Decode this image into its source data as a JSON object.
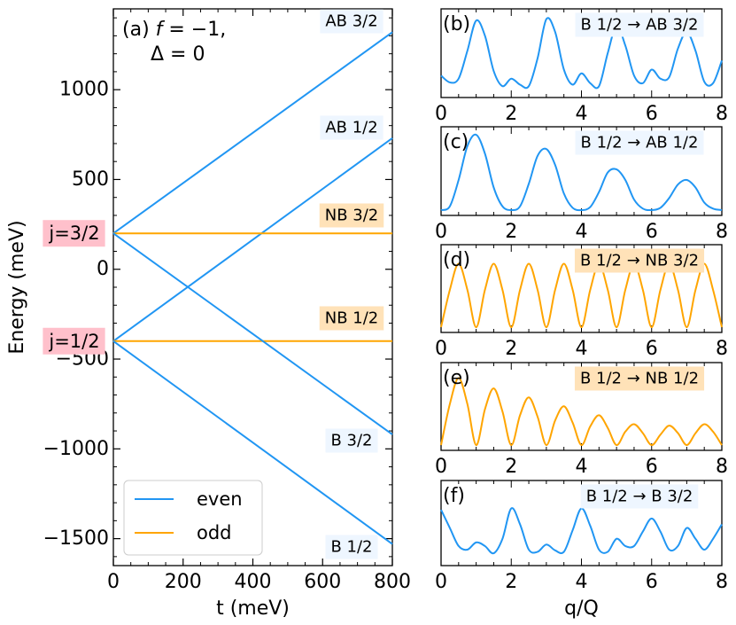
{
  "colors": {
    "even": "#2196F3",
    "odd": "#FFA500",
    "blue_box": "#EEF6FF",
    "orange_box": "#FFE2B8",
    "pink_box": "#FFC0CB"
  },
  "chart_data": [
    {
      "id": "a",
      "type": "line",
      "title": "(a) f = −1, Δ = 0",
      "title_parts": {
        "prefix": "(a) ",
        "f_symbol": "f",
        "f_value": "= −1,",
        "delta_line": "Δ = 0"
      },
      "xlabel": "t (meV)",
      "ylabel": "Energy (meV)",
      "xlim": [
        0,
        800
      ],
      "ylim": [
        -1650,
        1450
      ],
      "xticks": [
        0,
        200,
        400,
        600,
        800
      ],
      "yticks": [
        -1500,
        -1000,
        -500,
        0,
        500,
        1000
      ],
      "legend": {
        "position": "bottom-left",
        "entries": [
          {
            "label": "even",
            "parity": "even"
          },
          {
            "label": "odd",
            "parity": "odd"
          }
        ]
      },
      "series": [
        {
          "name": "AB 3/2",
          "parity": "even",
          "x": [
            0,
            800
          ],
          "y": [
            200,
            1320
          ]
        },
        {
          "name": "AB 1/2",
          "parity": "even",
          "x": [
            0,
            800
          ],
          "y": [
            -400,
            730
          ]
        },
        {
          "name": "NB 3/2",
          "parity": "odd",
          "x": [
            0,
            800
          ],
          "y": [
            200,
            200
          ]
        },
        {
          "name": "NB 1/2",
          "parity": "odd",
          "x": [
            0,
            800
          ],
          "y": [
            -400,
            -400
          ]
        },
        {
          "name": "B 3/2",
          "parity": "even",
          "x": [
            0,
            800
          ],
          "y": [
            200,
            -920
          ]
        },
        {
          "name": "B 1/2",
          "parity": "even",
          "x": [
            0,
            800
          ],
          "y": [
            -400,
            -1530
          ]
        }
      ],
      "side_labels": [
        {
          "text": "j=3/2",
          "y": 200
        },
        {
          "text": "j=1/2",
          "y": -400
        }
      ]
    },
    {
      "id": "b",
      "type": "line",
      "panel_label": "(b)",
      "title": "B 1/2 → AB 3/2",
      "parity": "even",
      "xlim": [
        0,
        8
      ],
      "xticks": [
        0,
        2,
        4,
        6,
        8
      ],
      "x": [
        0,
        0.25,
        0.5,
        0.75,
        1,
        1.25,
        1.5,
        1.75,
        2,
        2.25,
        2.5,
        2.75,
        3,
        3.25,
        3.5,
        3.75,
        4,
        4.25,
        4.5,
        4.75,
        5,
        5.25,
        5.5,
        5.75,
        6,
        6.25,
        6.5,
        6.75,
        7,
        7.25,
        7.5,
        7.75,
        8
      ],
      "y": [
        0.22,
        0.13,
        0.18,
        0.55,
        0.95,
        0.75,
        0.28,
        0.08,
        0.18,
        0.1,
        0.08,
        0.45,
        0.97,
        0.8,
        0.3,
        0.1,
        0.25,
        0.12,
        0.08,
        0.52,
        0.88,
        0.62,
        0.22,
        0.12,
        0.3,
        0.18,
        0.2,
        0.58,
        0.8,
        0.55,
        0.14,
        0.12,
        0.42
      ]
    },
    {
      "id": "c",
      "type": "line",
      "panel_label": "(c)",
      "title": "B 1/2 → AB 1/2",
      "parity": "even",
      "xlim": [
        0,
        8
      ],
      "xticks": [
        0,
        2,
        4,
        6,
        8
      ],
      "x": [
        0,
        0.25,
        0.5,
        0.75,
        1,
        1.25,
        1.5,
        1.75,
        2,
        2.25,
        2.5,
        2.75,
        3,
        3.25,
        3.5,
        3.75,
        4,
        4.25,
        4.5,
        4.75,
        5,
        5.25,
        5.5,
        5.75,
        6,
        6.25,
        6.5,
        6.75,
        7,
        7.25,
        7.5,
        7.75,
        8
      ],
      "y": [
        0.0,
        0.05,
        0.4,
        0.85,
        1.0,
        0.75,
        0.3,
        0.05,
        0.0,
        0.05,
        0.35,
        0.72,
        0.81,
        0.6,
        0.22,
        0.03,
        0.0,
        0.04,
        0.24,
        0.5,
        0.54,
        0.4,
        0.14,
        0.02,
        0.0,
        0.03,
        0.16,
        0.34,
        0.4,
        0.3,
        0.1,
        0.02,
        0.0
      ]
    },
    {
      "id": "d",
      "type": "line",
      "panel_label": "(d)",
      "title": "B 1/2 → NB 3/2",
      "parity": "odd",
      "xlim": [
        0,
        8
      ],
      "xticks": [
        0,
        2,
        4,
        6,
        8
      ],
      "x": [
        0,
        0.25,
        0.5,
        0.75,
        1,
        1.25,
        1.5,
        1.75,
        2,
        2.25,
        2.5,
        2.75,
        3,
        3.25,
        3.5,
        3.75,
        4,
        4.25,
        4.5,
        4.75,
        5,
        5.25,
        5.5,
        5.75,
        6,
        6.25,
        6.5,
        6.75,
        7,
        7.25,
        7.5,
        7.75,
        8
      ],
      "y": [
        0.0,
        0.5,
        0.85,
        0.5,
        0.0,
        0.5,
        0.85,
        0.5,
        0.0,
        0.5,
        0.85,
        0.5,
        0.0,
        0.5,
        0.85,
        0.5,
        0.0,
        0.5,
        0.85,
        0.5,
        0.0,
        0.5,
        0.85,
        0.5,
        0.0,
        0.5,
        0.85,
        0.5,
        0.0,
        0.5,
        0.85,
        0.5,
        0.0
      ]
    },
    {
      "id": "e",
      "type": "line",
      "panel_label": "(e)",
      "title": "B 1/2 → NB 1/2",
      "parity": "odd",
      "xlim": [
        0,
        8
      ],
      "xticks": [
        0,
        2,
        4,
        6,
        8
      ],
      "x": [
        0,
        0.25,
        0.5,
        0.75,
        1,
        1.25,
        1.5,
        1.75,
        2,
        2.25,
        2.5,
        2.75,
        3,
        3.25,
        3.5,
        3.75,
        4,
        4.25,
        4.5,
        4.75,
        5,
        5.25,
        5.5,
        5.75,
        6,
        6.25,
        6.5,
        6.75,
        7,
        7.25,
        7.5,
        7.75,
        8
      ],
      "y": [
        0.0,
        0.55,
        0.9,
        0.55,
        0.0,
        0.48,
        0.76,
        0.45,
        0.0,
        0.4,
        0.64,
        0.38,
        0.0,
        0.33,
        0.52,
        0.3,
        0.0,
        0.25,
        0.4,
        0.23,
        0.0,
        0.18,
        0.28,
        0.16,
        0.0,
        0.14,
        0.26,
        0.16,
        0.0,
        0.16,
        0.28,
        0.18,
        0.0
      ]
    },
    {
      "id": "f",
      "type": "line",
      "panel_label": "(f)",
      "title": "B 1/2 → B 3/2",
      "parity": "even",
      "xlim": [
        0,
        8
      ],
      "xticks": [
        0,
        2,
        4,
        6,
        8
      ],
      "x": [
        0,
        0.25,
        0.5,
        0.75,
        1,
        1.25,
        1.5,
        1.75,
        2,
        2.25,
        2.5,
        2.75,
        3,
        3.25,
        3.5,
        3.75,
        4,
        4.25,
        4.5,
        4.75,
        5,
        5.25,
        5.5,
        5.75,
        6,
        6.25,
        6.5,
        6.75,
        7,
        7.25,
        7.5,
        7.75,
        8
      ],
      "y": [
        0.7,
        0.45,
        0.2,
        0.15,
        0.25,
        0.2,
        0.1,
        0.3,
        0.72,
        0.5,
        0.15,
        0.12,
        0.22,
        0.14,
        0.12,
        0.42,
        0.72,
        0.48,
        0.15,
        0.12,
        0.3,
        0.2,
        0.2,
        0.4,
        0.58,
        0.4,
        0.15,
        0.2,
        0.45,
        0.3,
        0.15,
        0.3,
        0.5
      ]
    }
  ],
  "right_xlabel": "q/Q"
}
